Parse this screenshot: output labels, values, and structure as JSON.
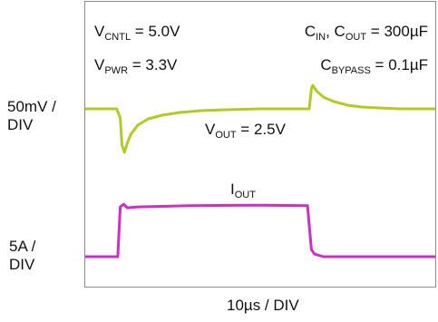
{
  "chart_data": {
    "type": "line",
    "title": "",
    "conditions": {
      "v_cntl": "5.0V",
      "v_pwr": "3.3V",
      "c_in_out": "300µF",
      "c_bypass": "0.1µF"
    },
    "scales": {
      "vout_per_div": "50mV / DIV",
      "iout_per_div": "5A / DIV",
      "time_per_div": "10µs / DIV"
    },
    "series": [
      {
        "name": "V_OUT = 2.5V",
        "color": "#b5c926",
        "x_unit": "µs",
        "y_unit": "mV deviation",
        "x": [
          0,
          9.0,
          10.0,
          10.5,
          11.2,
          12.0,
          13.0,
          15.0,
          18.0,
          22.0,
          27.0,
          33.0,
          40.0,
          50.0,
          60.0,
          64.0,
          64.6,
          65.0,
          66.0,
          68.0,
          71.0,
          75.0,
          79.0,
          84.0,
          90.0,
          100.0
        ],
        "y": [
          0,
          0,
          -10,
          -40,
          -48,
          -38,
          -28,
          -18,
          -11,
          -7,
          -4,
          -2,
          -1,
          0,
          0,
          0,
          22,
          26,
          20,
          13,
          8,
          4,
          2,
          1,
          0,
          0
        ]
      },
      {
        "name": "I_OUT",
        "color": "#cc2fc4",
        "x_unit": "µs",
        "y_unit": "A",
        "x": [
          0,
          9.3,
          10.0,
          11.0,
          12.0,
          15.0,
          30.0,
          50.0,
          63.5,
          64.6,
          65.5,
          68.0,
          80.0,
          100.0
        ],
        "y": [
          0,
          0,
          5.6,
          5.9,
          5.5,
          5.6,
          5.75,
          5.8,
          5.75,
          0.8,
          0.3,
          0,
          0,
          0
        ]
      }
    ]
  }
}
